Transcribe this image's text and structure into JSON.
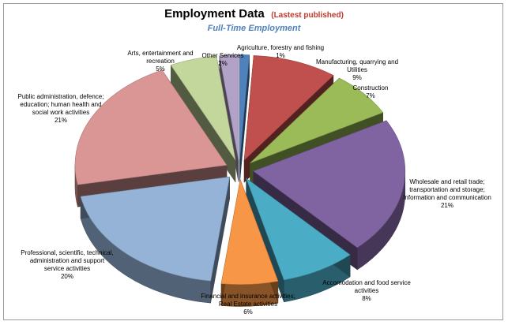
{
  "chart_data": {
    "type": "pie",
    "title": "Employment Data",
    "title_note": "(Lastest published)",
    "subtitle": "Full-Time Employment",
    "slices": [
      {
        "label": [
          "Agriculture, forestry and fishing"
        ],
        "value": 1,
        "value_label": "1%",
        "color": "#4f81bd"
      },
      {
        "label": [
          "Manufacturing, quarrying and",
          "Utilities"
        ],
        "value": 9,
        "value_label": "9%",
        "color": "#c0504d"
      },
      {
        "label": [
          "Construction"
        ],
        "value": 7,
        "value_label": "7%",
        "color": "#9bbb59"
      },
      {
        "label": [
          "Wholesale and retail trade;",
          "transportation and storage;",
          "Information and communication"
        ],
        "value": 21,
        "value_label": "21%",
        "color": "#8064a2"
      },
      {
        "label": [
          "Accomodation and food service",
          "activities"
        ],
        "value": 8,
        "value_label": "8%",
        "color": "#4bacc6"
      },
      {
        "label": [
          "Financial and insurance activities;",
          "Real Estate activities"
        ],
        "value": 6,
        "value_label": "6%",
        "color": "#f79646"
      },
      {
        "label": [
          "Professional, scientific, technical,",
          "administration and support",
          "service activities"
        ],
        "value": 20,
        "value_label": "20%",
        "color": "#95b3d7"
      },
      {
        "label": [
          "Public administration, defence;",
          "education; human health and",
          "social work activities"
        ],
        "value": 21,
        "value_label": "21%",
        "color": "#d99694"
      },
      {
        "label": [
          "Arts, entertainment and",
          "recreation"
        ],
        "value": 5,
        "value_label": "5%",
        "color": "#c3d69b"
      },
      {
        "label": [
          "Other Services"
        ],
        "value": 2,
        "value_label": "2%",
        "color": "#b2a2c7"
      }
    ]
  }
}
